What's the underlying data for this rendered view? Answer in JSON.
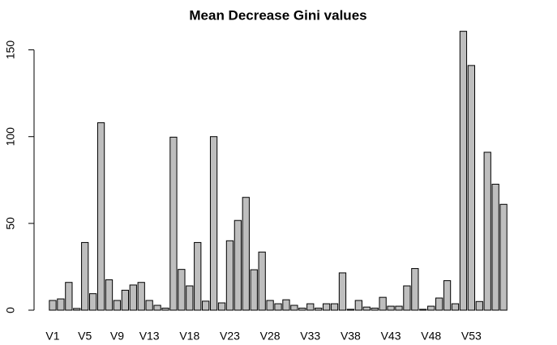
{
  "chart_data": {
    "type": "bar",
    "title": "Mean Decrease Gini values",
    "categories": [
      "V1",
      null,
      null,
      null,
      "V5",
      null,
      null,
      null,
      "V9",
      null,
      null,
      null,
      "V13",
      null,
      null,
      null,
      null,
      "V18",
      null,
      null,
      null,
      null,
      "V23",
      null,
      null,
      null,
      null,
      "V28",
      null,
      null,
      null,
      null,
      "V33",
      null,
      null,
      null,
      null,
      "V38",
      null,
      null,
      null,
      null,
      "V43",
      null,
      null,
      null,
      null,
      "V48",
      null,
      null,
      null,
      null,
      "V53",
      null,
      null,
      null,
      null
    ],
    "values": [
      5.6,
      6.5,
      16,
      1,
      39,
      9.5,
      108,
      17.5,
      5.6,
      11.5,
      14.5,
      16,
      5.6,
      2.8,
      1.2,
      99.7,
      23.5,
      14,
      39,
      5.2,
      100,
      4.2,
      40,
      51.7,
      65,
      23.3,
      33.5,
      5.6,
      3.7,
      6,
      2.8,
      1.2,
      3.7,
      1.2,
      3.7,
      3.7,
      21.5,
      0.5,
      5.6,
      1.8,
      1.2,
      7.4,
      2.3,
      2.3,
      14,
      24,
      0.5,
      2.3,
      7,
      17,
      3.7,
      160.7,
      141,
      5,
      91,
      72.6,
      61
    ],
    "color": "#bebebe",
    "ylim": [
      0,
      161
    ],
    "yticks": [
      0,
      50,
      100,
      150
    ],
    "grid": false
  }
}
